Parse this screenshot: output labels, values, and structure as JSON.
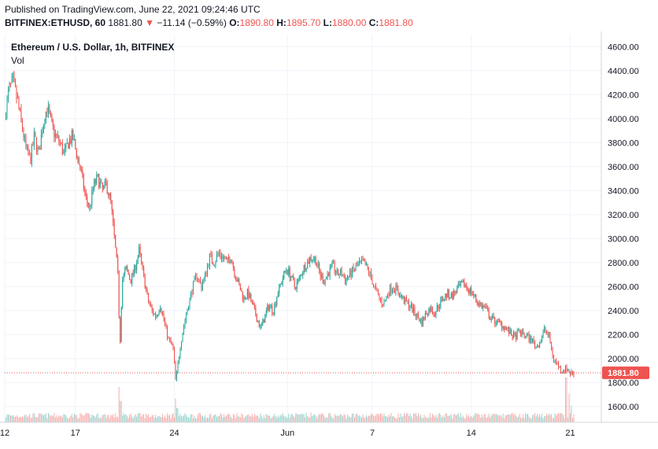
{
  "header": {
    "published": "Published on TradingView.com, June 22, 2021 09:24:46 UTC",
    "symbol": "BITFINEX:ETHUSD, 60",
    "last": "1881.80",
    "change_arrow": "▼",
    "change": "−11.14 (−0.59%)",
    "o_label": "O:",
    "o_value": "1890.80",
    "h_label": "H:",
    "h_value": "1895.70",
    "l_label": "L:",
    "l_value": "1880.00",
    "c_label": "C:",
    "c_value": "1881.80"
  },
  "legend": {
    "title": "Ethereum / U.S. Dollar, 1h, BITFINEX",
    "volume": "Vol"
  },
  "colors": {
    "up": "#26a69a",
    "down": "#ef5350",
    "grid": "#f0f3fa",
    "axis_border": "#d1d4dc"
  },
  "chart_data": {
    "type": "candlestick",
    "interval": "1h",
    "y_axis_ticks": [
      "4600.00",
      "4400.00",
      "4200.00",
      "4000.00",
      "3800.00",
      "3600.00",
      "3400.00",
      "3200.00",
      "3000.00",
      "2800.00",
      "2600.00",
      "2400.00",
      "2200.00",
      "2000.00",
      "1800.00",
      "1600.00"
    ],
    "ylim": [
      1470,
      4700
    ],
    "x_axis_ticks": [
      {
        "label": "12",
        "day": 0
      },
      {
        "label": "17",
        "day": 5
      },
      {
        "label": "24",
        "day": 12
      },
      {
        "label": "Jun",
        "day": 20
      },
      {
        "label": "7",
        "day": 26
      },
      {
        "label": "14",
        "day": 33
      },
      {
        "label": "21",
        "day": 40
      }
    ],
    "xlim_days": [
      0,
      42.2
    ],
    "last_price": "1881.80",
    "close_path": [
      [
        0.0,
        4000
      ],
      [
        0.3,
        4250
      ],
      [
        0.6,
        4300
      ],
      [
        0.9,
        4150
      ],
      [
        1.2,
        3950
      ],
      [
        1.5,
        3750
      ],
      [
        1.8,
        3650
      ],
      [
        2.1,
        3850
      ],
      [
        2.4,
        3700
      ],
      [
        2.7,
        3950
      ],
      [
        3.0,
        4100
      ],
      [
        3.3,
        3950
      ],
      [
        3.6,
        3850
      ],
      [
        3.9,
        3800
      ],
      [
        4.2,
        3700
      ],
      [
        4.5,
        3800
      ],
      [
        4.8,
        3850
      ],
      [
        5.1,
        3700
      ],
      [
        5.4,
        3550
      ],
      [
        5.7,
        3350
      ],
      [
        6.0,
        3250
      ],
      [
        6.3,
        3450
      ],
      [
        6.6,
        3500
      ],
      [
        6.9,
        3400
      ],
      [
        7.2,
        3450
      ],
      [
        7.5,
        3300
      ],
      [
        7.8,
        2950
      ],
      [
        8.0,
        2700
      ],
      [
        8.15,
        2100
      ],
      [
        8.3,
        2650
      ],
      [
        8.6,
        2750
      ],
      [
        8.9,
        2650
      ],
      [
        9.2,
        2750
      ],
      [
        9.5,
        2900
      ],
      [
        9.8,
        2700
      ],
      [
        10.1,
        2500
      ],
      [
        10.4,
        2400
      ],
      [
        10.7,
        2350
      ],
      [
        11.0,
        2450
      ],
      [
        11.3,
        2300
      ],
      [
        11.6,
        2150
      ],
      [
        11.9,
        2100
      ],
      [
        12.1,
        1800
      ],
      [
        12.4,
        2100
      ],
      [
        12.7,
        2300
      ],
      [
        13.0,
        2450
      ],
      [
        13.3,
        2600
      ],
      [
        13.6,
        2700
      ],
      [
        13.9,
        2600
      ],
      [
        14.2,
        2700
      ],
      [
        14.5,
        2850
      ],
      [
        14.8,
        2800
      ],
      [
        15.1,
        2880
      ],
      [
        15.4,
        2850
      ],
      [
        15.7,
        2800
      ],
      [
        16.0,
        2850
      ],
      [
        16.3,
        2700
      ],
      [
        16.6,
        2600
      ],
      [
        16.9,
        2500
      ],
      [
        17.2,
        2550
      ],
      [
        17.5,
        2450
      ],
      [
        17.8,
        2350
      ],
      [
        18.1,
        2250
      ],
      [
        18.4,
        2350
      ],
      [
        18.7,
        2450
      ],
      [
        19.0,
        2400
      ],
      [
        19.3,
        2550
      ],
      [
        19.6,
        2650
      ],
      [
        19.9,
        2750
      ],
      [
        20.2,
        2700
      ],
      [
        20.5,
        2600
      ],
      [
        20.8,
        2650
      ],
      [
        21.1,
        2750
      ],
      [
        21.4,
        2800
      ],
      [
        21.7,
        2850
      ],
      [
        22.0,
        2820
      ],
      [
        22.3,
        2700
      ],
      [
        22.6,
        2650
      ],
      [
        22.9,
        2720
      ],
      [
        23.2,
        2780
      ],
      [
        23.5,
        2700
      ],
      [
        23.8,
        2720
      ],
      [
        24.1,
        2650
      ],
      [
        24.4,
        2700
      ],
      [
        24.7,
        2740
      ],
      [
        25.0,
        2780
      ],
      [
        25.3,
        2800
      ],
      [
        25.6,
        2760
      ],
      [
        25.9,
        2680
      ],
      [
        26.2,
        2580
      ],
      [
        26.5,
        2500
      ],
      [
        26.8,
        2450
      ],
      [
        27.1,
        2550
      ],
      [
        27.4,
        2600
      ],
      [
        27.7,
        2580
      ],
      [
        28.0,
        2520
      ],
      [
        28.3,
        2480
      ],
      [
        28.6,
        2450
      ],
      [
        28.9,
        2400
      ],
      [
        29.2,
        2350
      ],
      [
        29.5,
        2300
      ],
      [
        29.8,
        2380
      ],
      [
        30.1,
        2420
      ],
      [
        30.4,
        2380
      ],
      [
        30.7,
        2450
      ],
      [
        31.0,
        2500
      ],
      [
        31.3,
        2540
      ],
      [
        31.6,
        2520
      ],
      [
        31.9,
        2560
      ],
      [
        32.2,
        2600
      ],
      [
        32.5,
        2620
      ],
      [
        32.8,
        2580
      ],
      [
        33.1,
        2540
      ],
      [
        33.4,
        2480
      ],
      [
        33.7,
        2440
      ],
      [
        34.0,
        2420
      ],
      [
        34.3,
        2350
      ],
      [
        34.6,
        2320
      ],
      [
        34.9,
        2300
      ],
      [
        35.2,
        2280
      ],
      [
        35.5,
        2250
      ],
      [
        35.8,
        2200
      ],
      [
        36.1,
        2180
      ],
      [
        36.4,
        2220
      ],
      [
        36.7,
        2200
      ],
      [
        37.0,
        2180
      ],
      [
        37.3,
        2150
      ],
      [
        37.6,
        2100
      ],
      [
        37.9,
        2150
      ],
      [
        38.2,
        2250
      ],
      [
        38.5,
        2180
      ],
      [
        38.8,
        2000
      ],
      [
        39.1,
        1950
      ],
      [
        39.4,
        1900
      ],
      [
        39.7,
        1920
      ],
      [
        40.0,
        1880
      ],
      [
        40.3,
        1882
      ]
    ],
    "volume_spikes": [
      {
        "day": 8.1,
        "rel": 0.75
      },
      {
        "day": 8.2,
        "rel": 0.45
      },
      {
        "day": 12.1,
        "rel": 0.5
      },
      {
        "day": 12.2,
        "rel": 0.3
      },
      {
        "day": 39.7,
        "rel": 0.95
      },
      {
        "day": 39.9,
        "rel": 0.6
      },
      {
        "day": 40.1,
        "rel": 0.35
      }
    ]
  }
}
